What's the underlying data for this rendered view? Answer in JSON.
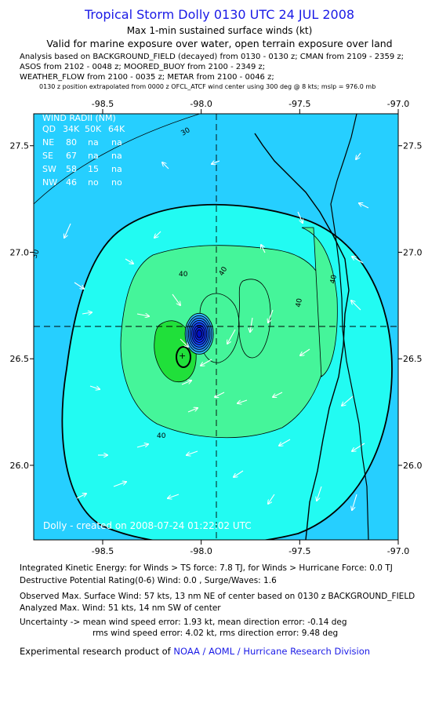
{
  "header": {
    "title": "Tropical Storm Dolly 0130 UTC 24 JUL 2008",
    "subtitle": "Max 1-min sustained surface winds (kt)",
    "validity": "Valid for marine exposure over water, open terrain exposure over land",
    "sources_line1": "Analysis based on  BACKGROUND_FIELD (decayed) from 0130 - 0130 z;  CMAN from 2109 - 2359 z;",
    "sources_line2": "ASOS from 2102 - 0048 z;  MOORED_BUOY from 2100 - 2349 z;",
    "sources_line3": "WEATHER_FLOW from 2100 - 0035 z;  METAR from 2100 - 0046 z;",
    "position_note": "0130 z position extrapolated from 0000 z OFCL_ATCF wind center using 300 deg @ 8 kts;  mslp = 976.0 mb"
  },
  "map": {
    "lon_ticks": [
      "-98.5",
      "-98.0",
      "-97.5",
      "-97.0"
    ],
    "lat_ticks": [
      "27.5",
      "27.0",
      "26.5",
      "26.0"
    ],
    "lon_range": [
      -98.85,
      -97.0
    ],
    "lat_range": [
      25.65,
      27.65
    ],
    "storm_center": {
      "lon": -98.01,
      "lat": 26.61
    },
    "max_wind_marker": {
      "lon": -98.15,
      "lat": 26.46
    },
    "contour_labels": [
      "30",
      "30",
      "40",
      "40",
      "40",
      "40",
      "40"
    ],
    "wind_radii": {
      "title": "WIND RADII (NM)",
      "header": [
        "QD",
        "34K",
        "50K",
        "64K"
      ],
      "rows": [
        [
          "NE",
          "80",
          "na",
          "na"
        ],
        [
          "SE",
          "67",
          "na",
          "na"
        ],
        [
          "SW",
          "58",
          "15",
          "na"
        ],
        [
          "NW",
          "46",
          "no",
          "no"
        ]
      ]
    },
    "credit": "Dolly - created on 2008-07-24 01:22:02 UTC",
    "colors": {
      "bg_30": "#26cfff",
      "band_30_40": "#22fbf2",
      "band_40_50": "#45f59a",
      "band_50": "#20e03a",
      "eye": "#1030ff",
      "land_line": "#000000",
      "title_blue": "#1a1ae6"
    }
  },
  "footer": {
    "ike": "Integrated Kinetic Energy:  for Winds > TS force: 7.8 TJ,  for Winds > Hurricane Force: 0.0 TJ",
    "dpr": "Destructive Potential Rating(0-6)   Wind: 0.0 , Surge/Waves: 1.6",
    "observed": "Observed Max. Surface Wind: 57 kts, 13 nm NE of center based on 0130 z BACKGROUND_FIELD",
    "analyzed": "Analyzed Max. Wind: 51 kts, 14 nm SW of center",
    "uncertainty1": "Uncertainty -> mean wind speed error: 1.93 kt,   mean direction error:  -0.14 deg",
    "uncertainty2": "rms wind speed error: 4.02 kt,   rms direction error: 9.48 deg",
    "product_prefix": "Experimental research product of ",
    "product_org": "NOAA / AOML / Hurricane Research Division"
  }
}
